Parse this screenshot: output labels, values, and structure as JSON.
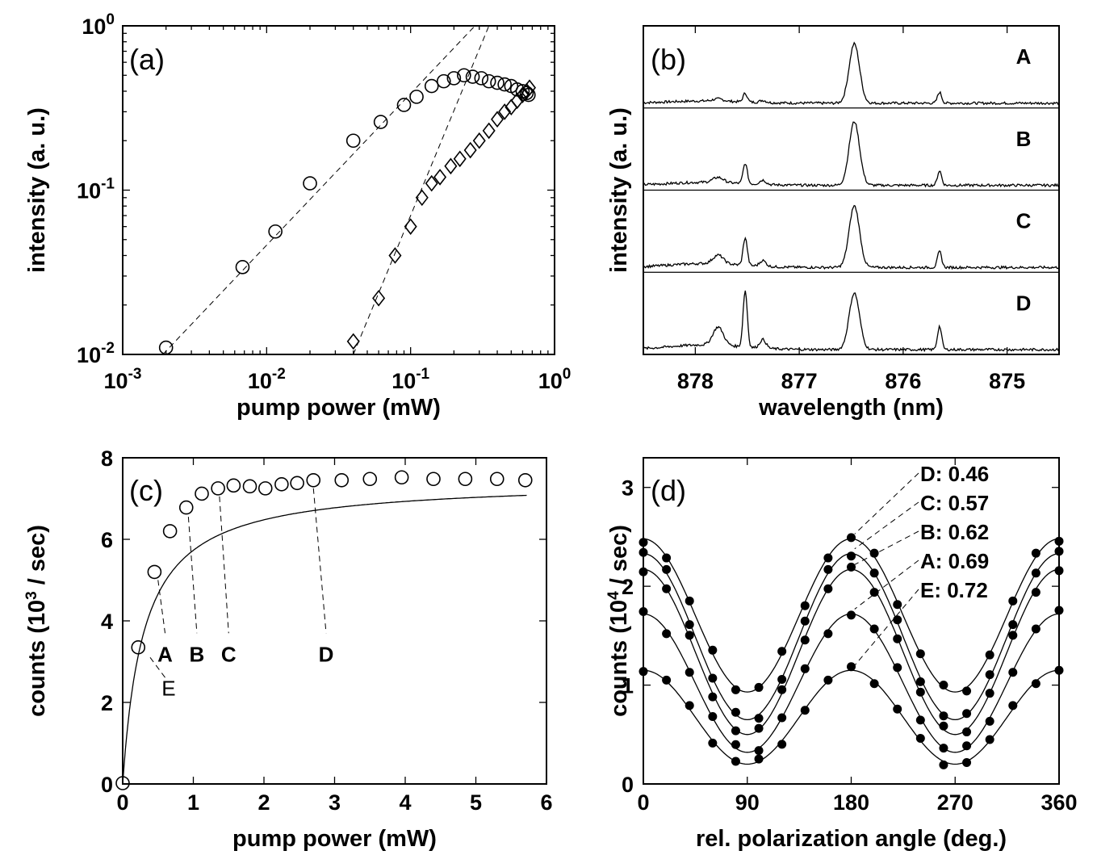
{
  "chart_data": [
    {
      "id": "a",
      "type": "scatter",
      "panel_label": "(a)",
      "xlabel": "pump power (mW)",
      "ylabel": "intensity (a. u.)",
      "xscale": "log",
      "yscale": "log",
      "xlim": [
        0.001,
        1
      ],
      "ylim": [
        0.01,
        1
      ],
      "xticks": [
        0.001,
        0.01,
        0.1,
        1
      ],
      "xtick_labels": [
        [
          "10",
          "-3"
        ],
        [
          "10",
          "-2"
        ],
        [
          "10",
          "-1"
        ],
        [
          "10",
          "0"
        ]
      ],
      "yticks": [
        0.01,
        0.1,
        1
      ],
      "ytick_labels": [
        [
          "10",
          "-2"
        ],
        [
          "10",
          "-1"
        ],
        [
          "10",
          "0"
        ]
      ],
      "series": [
        {
          "marker": "circle",
          "x": [
            0.002,
            0.0068,
            0.0115,
            0.02,
            0.04,
            0.062,
            0.09,
            0.11,
            0.14,
            0.17,
            0.2,
            0.235,
            0.27,
            0.31,
            0.35,
            0.4,
            0.45,
            0.5,
            0.55,
            0.6,
            0.64,
            0.66
          ],
          "y": [
            0.011,
            0.034,
            0.056,
            0.11,
            0.2,
            0.26,
            0.33,
            0.37,
            0.43,
            0.46,
            0.48,
            0.5,
            0.49,
            0.48,
            0.46,
            0.45,
            0.44,
            0.43,
            0.41,
            0.4,
            0.39,
            0.38
          ]
        },
        {
          "marker": "diamond",
          "x": [
            0.04,
            0.06,
            0.078,
            0.1,
            0.12,
            0.14,
            0.16,
            0.19,
            0.22,
            0.26,
            0.3,
            0.35,
            0.4,
            0.45,
            0.5,
            0.55,
            0.6,
            0.64,
            0.67
          ],
          "y": [
            0.012,
            0.022,
            0.04,
            0.06,
            0.09,
            0.11,
            0.12,
            0.14,
            0.155,
            0.175,
            0.2,
            0.23,
            0.27,
            0.3,
            0.32,
            0.35,
            0.38,
            0.4,
            0.42
          ]
        }
      ],
      "fit_lines": [
        {
          "style": "dashed",
          "x": [
            0.0019,
            0.28
          ],
          "y": [
            0.01,
            1
          ]
        },
        {
          "style": "dashed",
          "x": [
            0.04,
            0.35
          ],
          "y": [
            0.01,
            1
          ]
        }
      ]
    },
    {
      "id": "b",
      "type": "line",
      "panel_label": "(b)",
      "xlabel": "wavelength (nm)",
      "ylabel": "intensity (a. u.)",
      "xlim": [
        878.5,
        874.5
      ],
      "x_reversed": true,
      "xticks": [
        878,
        877,
        876,
        875
      ],
      "xtick_labels": [
        "878",
        "877",
        "876",
        "875"
      ],
      "stack_labels": [
        "A",
        "B",
        "C",
        "D"
      ],
      "peaks": [
        {
          "center": 876.47,
          "width": 0.05,
          "heights": [
            0.82,
            0.88,
            0.85,
            0.78
          ]
        },
        {
          "center": 877.52,
          "width": 0.02,
          "heights": [
            0.12,
            0.28,
            0.38,
            0.78
          ]
        },
        {
          "center": 875.65,
          "width": 0.02,
          "heights": [
            0.15,
            0.2,
            0.22,
            0.32
          ]
        },
        {
          "center": 877.78,
          "width": 0.05,
          "heights": [
            0.03,
            0.07,
            0.12,
            0.25
          ]
        },
        {
          "center": 877.35,
          "width": 0.03,
          "heights": [
            0.03,
            0.06,
            0.08,
            0.12
          ]
        }
      ]
    },
    {
      "id": "c",
      "type": "scatter",
      "panel_label": "(c)",
      "xlabel": "pump power (mW)",
      "ylabel": "counts (10",
      "ylabel_sup": "3",
      "ylabel_end": " / sec)",
      "xlim": [
        0,
        6
      ],
      "ylim": [
        0,
        8
      ],
      "xticks": [
        0,
        1,
        2,
        3,
        4,
        5,
        6
      ],
      "yticks": [
        0,
        2,
        4,
        6,
        8
      ],
      "points": {
        "x": [
          0,
          0.22,
          0.45,
          0.67,
          0.9,
          1.12,
          1.35,
          1.57,
          1.8,
          2.02,
          2.25,
          2.47,
          2.7,
          3.1,
          3.5,
          3.95,
          4.4,
          4.85,
          5.3,
          5.7
        ],
        "y": [
          0.02,
          3.35,
          5.2,
          6.2,
          6.78,
          7.12,
          7.25,
          7.32,
          7.3,
          7.25,
          7.35,
          7.38,
          7.45,
          7.45,
          7.48,
          7.52,
          7.48,
          7.48,
          7.48,
          7.45
        ]
      },
      "fit": {
        "model": "saturation",
        "Imax": 7.45,
        "Psat": 0.3
      },
      "annotations": [
        {
          "text": "A",
          "x": 0.6,
          "y": 3.5,
          "px": 0.5,
          "py": 5.2,
          "bold": true
        },
        {
          "text": "B",
          "x": 1.05,
          "y": 3.5,
          "px": 0.93,
          "py": 6.75,
          "bold": true
        },
        {
          "text": "C",
          "x": 1.5,
          "y": 3.5,
          "px": 1.37,
          "py": 7.25,
          "bold": true
        },
        {
          "text": "D",
          "x": 2.88,
          "y": 3.5,
          "px": 2.7,
          "py": 7.45,
          "bold": true
        },
        {
          "text": "E",
          "x": 0.65,
          "y": 2.6,
          "px": 0.32,
          "py": 3.3,
          "bold": false
        }
      ]
    },
    {
      "id": "d",
      "type": "scatter",
      "panel_label": "(d)",
      "xlabel": "rel. polarization angle (deg.)",
      "ylabel": "counts (10",
      "ylabel_sup": "4",
      "ylabel_end": " / sec)",
      "xlim": [
        0,
        360
      ],
      "ylim": [
        0,
        3.3
      ],
      "xticks": [
        0,
        90,
        180,
        270,
        360
      ],
      "yticks": [
        0,
        1,
        2,
        3
      ],
      "angles": [
        0,
        20,
        40,
        60,
        80,
        100,
        120,
        140,
        160,
        180,
        200,
        220,
        240,
        260,
        280,
        300,
        320,
        340,
        360
      ],
      "series": [
        {
          "name": "D: 0.46",
          "max": 2.48,
          "min": 0.93
        },
        {
          "name": "C: 0.57",
          "max": 2.33,
          "min": 0.65
        },
        {
          "name": "B: 0.62",
          "max": 2.17,
          "min": 0.5
        },
        {
          "name": "A: 0.69",
          "max": 1.72,
          "min": 0.32
        },
        {
          "name": "E: 0.72",
          "max": 1.15,
          "min": 0.2
        }
      ]
    }
  ]
}
